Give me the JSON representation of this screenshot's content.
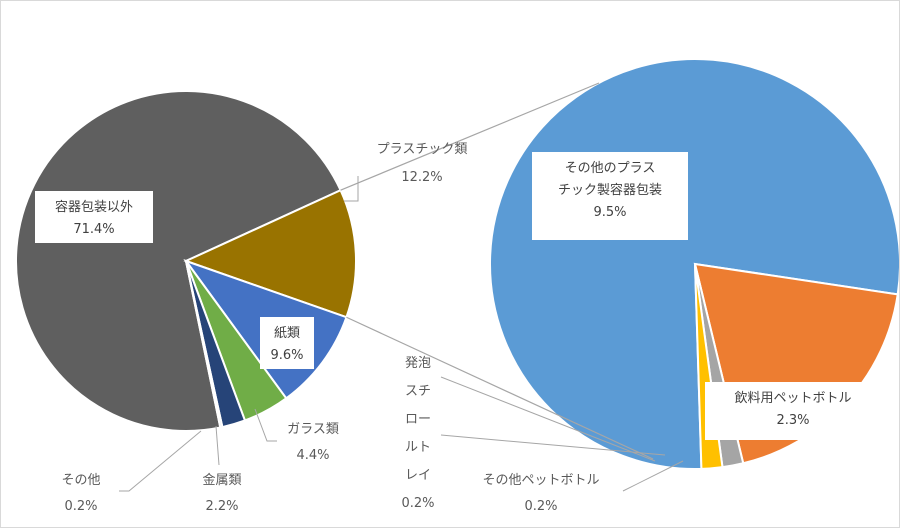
{
  "chart_data": [
    {
      "type": "pie",
      "categories": [
        "容器包装以外",
        "プラスチック類",
        "紙類",
        "ガラス類",
        "金属類",
        "その他"
      ],
      "values": [
        71.4,
        12.2,
        9.6,
        4.4,
        2.2,
        0.2
      ],
      "value_labels": [
        "71.4%",
        "12.2%",
        "9.6%",
        "4.4%",
        "2.2%",
        "0.2%"
      ],
      "colors": [
        "#5f5f5f",
        "#997300",
        "#4472c4",
        "#70ad47",
        "#264478",
        "#a5a5a5"
      ],
      "title": "",
      "legend": "none"
    },
    {
      "type": "pie",
      "categories": [
        "その他のプラスチック製容器包装",
        "飲料用ペットボトル",
        "その他ペットボトル",
        "発泡スチロールトレイ"
      ],
      "values": [
        9.5,
        2.3,
        0.2,
        0.2
      ],
      "value_labels": [
        "9.5%",
        "2.3%",
        "0.2%",
        "0.2%"
      ],
      "colors": [
        "#5b9bd5",
        "#ed7d31",
        "#a5a5a5",
        "#ffc000"
      ],
      "title": "",
      "legend": "none",
      "label_lines": {
        "0": [
          "その他のプラス",
          "チック製容器包装"
        ],
        "3": [
          "発泡",
          "スチ",
          "ロー",
          "ルト",
          "レイ"
        ]
      }
    }
  ]
}
